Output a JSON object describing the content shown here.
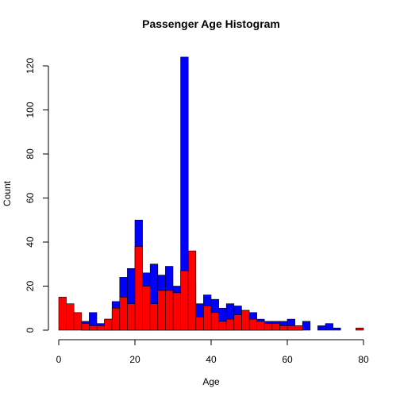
{
  "chart_data": {
    "type": "bar",
    "title": "Passenger Age Histogram",
    "xlabel": "Age",
    "ylabel": "Count",
    "xlim": [
      0,
      80
    ],
    "ylim": [
      0,
      120
    ],
    "xticks": [
      "0",
      "20",
      "40",
      "60",
      "80"
    ],
    "yticks": [
      "0",
      "20",
      "40",
      "60",
      "80",
      "100",
      "120"
    ],
    "bin_width": 2,
    "bin_start": 0,
    "series": [
      {
        "color": "#0000ff",
        "values": [
          0,
          0,
          0,
          4,
          8,
          3,
          5,
          13,
          24,
          28,
          50,
          26,
          30,
          25,
          29,
          20,
          124,
          21,
          12,
          16,
          14,
          10,
          12,
          11,
          9,
          8,
          5,
          4,
          4,
          4,
          5,
          2,
          4,
          0,
          2,
          3,
          1,
          0,
          0,
          0
        ]
      },
      {
        "color": "#ff0000",
        "values": [
          15,
          12,
          8,
          3,
          2,
          2,
          5,
          10,
          15,
          12,
          38,
          20,
          12,
          18,
          18,
          17,
          27,
          36,
          6,
          11,
          8,
          4,
          5,
          7,
          9,
          5,
          4,
          3,
          3,
          2,
          2,
          2,
          0,
          0,
          0,
          0,
          0,
          0,
          0,
          1
        ]
      }
    ]
  }
}
